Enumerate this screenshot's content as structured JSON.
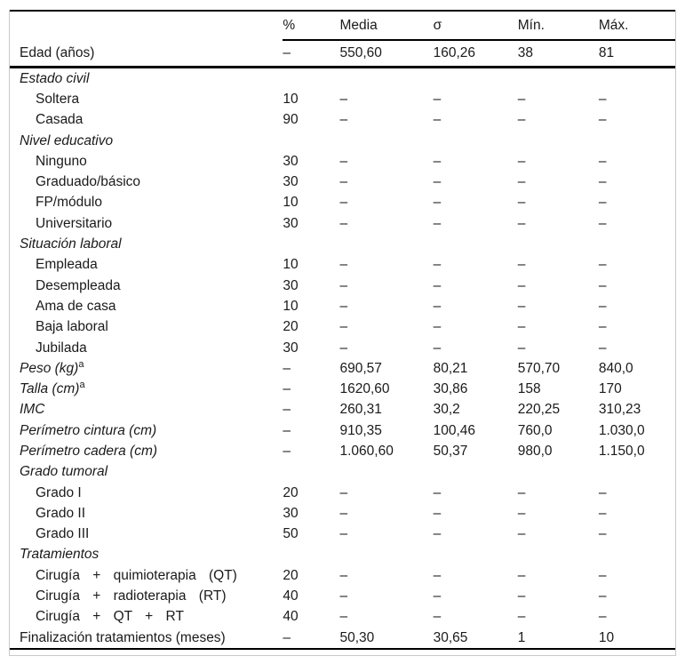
{
  "table": {
    "columns": [
      "",
      "%",
      "Media",
      "σ",
      "Mín.",
      "Máx."
    ],
    "rows": [
      {
        "label": "Edad (años)",
        "variant": "plain",
        "rule_below": true,
        "cells": [
          "–",
          "550,60",
          "160,26",
          "38",
          "81"
        ]
      },
      {
        "label": "Estado civil",
        "variant": "section"
      },
      {
        "label": "Soltera",
        "variant": "item",
        "cells": [
          "10",
          "–",
          "–",
          "–",
          "–"
        ]
      },
      {
        "label": "Casada",
        "variant": "item",
        "cells": [
          "90",
          "–",
          "–",
          "–",
          "–"
        ]
      },
      {
        "label": "Nivel educativo",
        "variant": "section"
      },
      {
        "label": "Ninguno",
        "variant": "item",
        "cells": [
          "30",
          "–",
          "–",
          "–",
          "–"
        ]
      },
      {
        "label": "Graduado/básico",
        "variant": "item",
        "cells": [
          "30",
          "–",
          "–",
          "–",
          "–"
        ]
      },
      {
        "label": "FP/módulo",
        "variant": "item",
        "cells": [
          "10",
          "–",
          "–",
          "–",
          "–"
        ]
      },
      {
        "label": "Universitario",
        "variant": "item",
        "cells": [
          "30",
          "–",
          "–",
          "–",
          "–"
        ]
      },
      {
        "label": "Situación laboral",
        "variant": "section"
      },
      {
        "label": "Empleada",
        "variant": "item",
        "cells": [
          "10",
          "–",
          "–",
          "–",
          "–"
        ]
      },
      {
        "label": "Desempleada",
        "variant": "item",
        "cells": [
          "30",
          "–",
          "–",
          "–",
          "–"
        ]
      },
      {
        "label": "Ama de casa",
        "variant": "item",
        "cells": [
          "10",
          "–",
          "–",
          "–",
          "–"
        ]
      },
      {
        "label": "Baja laboral",
        "variant": "item",
        "cells": [
          "20",
          "–",
          "–",
          "–",
          "–"
        ]
      },
      {
        "label": "Jubilada",
        "variant": "item",
        "cells": [
          "30",
          "–",
          "–",
          "–",
          "–"
        ]
      },
      {
        "label": "Peso (kg)",
        "sup": "a",
        "variant": "var",
        "cells": [
          "–",
          "690,57",
          "80,21",
          "570,70",
          "840,0"
        ]
      },
      {
        "label": "Talla (cm)",
        "sup": "a",
        "variant": "var",
        "cells": [
          "–",
          "1620,60",
          "30,86",
          "158",
          "170"
        ]
      },
      {
        "label": "IMC",
        "variant": "var",
        "cells": [
          "–",
          "260,31",
          "30,2",
          "220,25",
          "310,23"
        ]
      },
      {
        "label": "Perímetro cintura (cm)",
        "variant": "var",
        "cells": [
          "–",
          "910,35",
          "100,46",
          "760,0",
          "1.030,0"
        ]
      },
      {
        "label": "Perímetro cadera (cm)",
        "variant": "var",
        "cells": [
          "–",
          "1.060,60",
          "50,37",
          "980,0",
          "1.150,0"
        ]
      },
      {
        "label": "Grado tumoral",
        "variant": "section"
      },
      {
        "label": "Grado I",
        "variant": "item",
        "cells": [
          "20",
          "–",
          "–",
          "–",
          "–"
        ]
      },
      {
        "label": "Grado II",
        "variant": "item",
        "cells": [
          "30",
          "–",
          "–",
          "–",
          "–"
        ]
      },
      {
        "label": "Grado III",
        "variant": "item",
        "cells": [
          "50",
          "–",
          "–",
          "–",
          "–"
        ]
      },
      {
        "label": "Tratamientos",
        "variant": "section"
      },
      {
        "label": "Cirugía + quimioterapia (QT)",
        "variant": "item",
        "spread": true,
        "cells": [
          "20",
          "–",
          "–",
          "–",
          "–"
        ]
      },
      {
        "label": "Cirugía + radioterapia (RT)",
        "variant": "item",
        "spread": true,
        "cells": [
          "40",
          "–",
          "–",
          "–",
          "–"
        ]
      },
      {
        "label": "Cirugía + QT + RT",
        "variant": "item",
        "spread": true,
        "cells": [
          "40",
          "–",
          "–",
          "–",
          "–"
        ]
      },
      {
        "label": "Finalización tratamientos (meses)",
        "variant": "plain",
        "cells": [
          "–",
          "50,30",
          "30,65",
          "1",
          "10"
        ]
      }
    ]
  },
  "colors": {
    "rule": "#000000",
    "frame_border": "#c9c9c9",
    "text": "#1a1a1a"
  }
}
